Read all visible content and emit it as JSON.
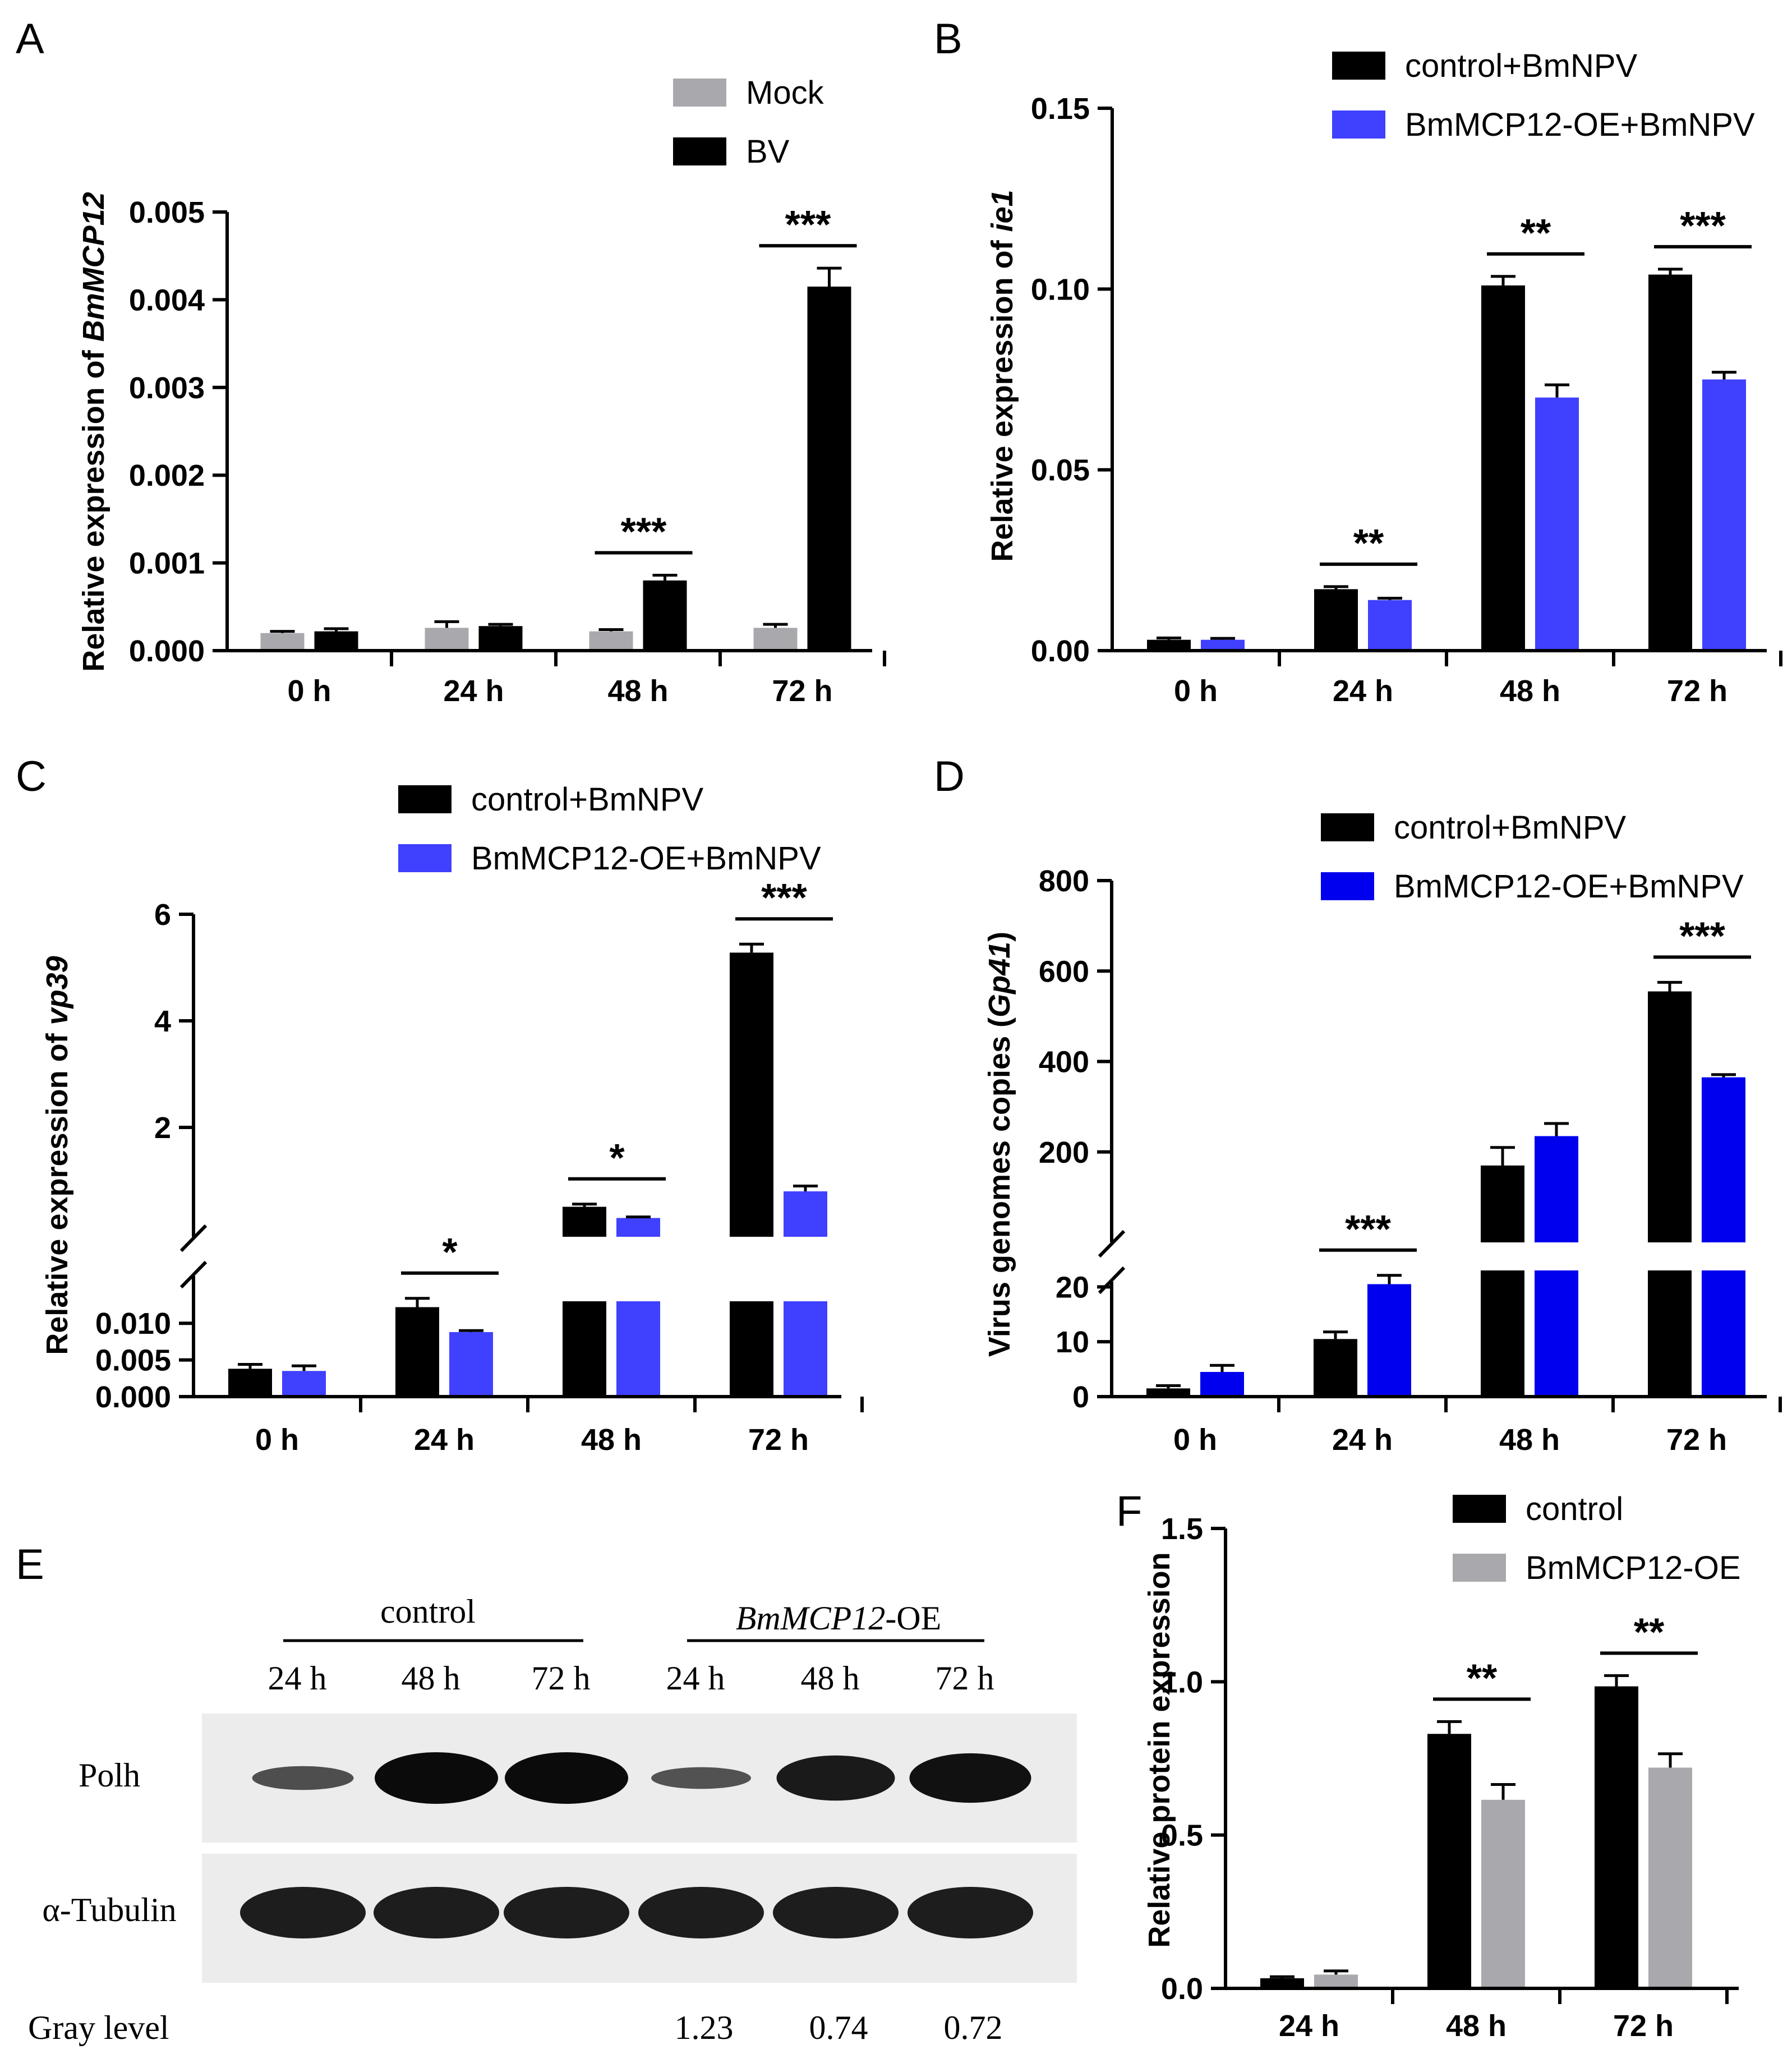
{
  "colors": {
    "black": "#000000",
    "gray": "#a9a9ad",
    "blue_light": "#4040ff",
    "blue_dark": "#0000ee"
  },
  "chart_data": [
    {
      "panel": "A",
      "type": "bar",
      "title": "",
      "xlabel": "",
      "ylabel_prefix": "Relative expression of ",
      "ylabel_italic": "BmMCP12",
      "categories": [
        "0 h",
        "24 h",
        "48 h",
        "72 h"
      ],
      "series": [
        {
          "name": "Mock",
          "color": "#a9a9ad",
          "values": [
            0.0002,
            0.00026,
            0.00022,
            0.00026
          ],
          "errors": [
            2e-05,
            7e-05,
            2e-05,
            4e-05
          ]
        },
        {
          "name": "BV",
          "color": "#000000",
          "values": [
            0.00022,
            0.00028,
            0.0008,
            0.00415
          ],
          "errors": [
            3e-05,
            2e-05,
            6e-05,
            0.00021
          ]
        }
      ],
      "ylim": [
        0,
        0.005
      ],
      "yticks": [
        "0.000",
        "0.001",
        "0.002",
        "0.003",
        "0.004",
        "0.005"
      ],
      "legend_position": "top-right",
      "significance": [
        {
          "category": "48 h",
          "label": "***"
        },
        {
          "category": "72 h",
          "label": "***"
        }
      ]
    },
    {
      "panel": "B",
      "type": "bar",
      "title": "",
      "xlabel": "",
      "ylabel_prefix": "Relative expression of ",
      "ylabel_italic": "ie1",
      "categories": [
        "0 h",
        "24 h",
        "48 h",
        "72 h"
      ],
      "series": [
        {
          "name": "control+BmNPV",
          "color": "#000000",
          "values": [
            0.003,
            0.017,
            0.101,
            0.104
          ],
          "errors": [
            0.0005,
            0.0007,
            0.0025,
            0.0015
          ]
        },
        {
          "name": "BmMCP12-OE+BmNPV",
          "color": "#4040ff",
          "values": [
            0.003,
            0.014,
            0.07,
            0.075
          ],
          "errors": [
            0.0004,
            0.0005,
            0.0035,
            0.002
          ]
        }
      ],
      "ylim": [
        0,
        0.15
      ],
      "yticks": [
        "0.00",
        "0.05",
        "0.10",
        "0.15"
      ],
      "legend_position": "top-right",
      "significance": [
        {
          "category": "24 h",
          "label": "**"
        },
        {
          "category": "48 h",
          "label": "**"
        },
        {
          "category": "72 h",
          "label": "***"
        }
      ]
    },
    {
      "panel": "C",
      "type": "bar",
      "title": "",
      "xlabel": "",
      "ylabel_prefix": "Relative expression of ",
      "ylabel_italic": "vp39",
      "axis_break": true,
      "categories": [
        "0 h",
        "24 h",
        "48 h",
        "72 h"
      ],
      "series": [
        {
          "name": "control+BmNPV",
          "color": "#000000",
          "values": [
            0.0038,
            0.0122,
            0.51,
            5.28
          ],
          "errors": [
            0.0006,
            0.0012,
            0.05,
            0.16
          ]
        },
        {
          "name": "BmMCP12-OE+BmNPV",
          "color": "#4040ff",
          "values": [
            0.0035,
            0.0088,
            0.3,
            0.8
          ],
          "errors": [
            0.0007,
            0.0002,
            0.02,
            0.1
          ]
        }
      ],
      "ylim_lower": [
        0,
        0.013
      ],
      "ylim_upper": [
        0,
        6
      ],
      "yticks_lower": [
        "0.000",
        "0.005",
        "0.010"
      ],
      "yticks_upper": [
        "2",
        "4",
        "6"
      ],
      "legend_position": "top-right",
      "significance": [
        {
          "category": "24 h",
          "label": "*"
        },
        {
          "category": "48 h",
          "label": "*"
        },
        {
          "category": "72 h",
          "label": "***"
        }
      ]
    },
    {
      "panel": "D",
      "type": "bar",
      "title": "",
      "xlabel": "",
      "ylabel_prefix": "Virus genomes copies (",
      "ylabel_italic": "Gp41",
      "ylabel_suffix": ")",
      "axis_break": true,
      "categories": [
        "0 h",
        "24 h",
        "48 h",
        "72 h"
      ],
      "series": [
        {
          "name": "control+BmNPV",
          "color": "#000000",
          "values": [
            1.5,
            10.5,
            170,
            555
          ],
          "errors": [
            0.5,
            1.3,
            40,
            20
          ]
        },
        {
          "name": "BmMCP12-OE+BmNPV",
          "color": "#0000ee",
          "values": [
            4.5,
            20.5,
            235,
            365
          ],
          "errors": [
            1.2,
            1.6,
            28,
            6
          ]
        }
      ],
      "ylim_lower": [
        0,
        23
      ],
      "ylim_upper": [
        0,
        800
      ],
      "yticks_lower": [
        "0",
        "10",
        "20"
      ],
      "yticks_upper": [
        "200",
        "400",
        "600",
        "800"
      ],
      "legend_position": "top-right",
      "significance": [
        {
          "category": "24 h",
          "label": "***"
        },
        {
          "category": "72 h",
          "label": "***"
        }
      ]
    },
    {
      "panel": "F",
      "type": "bar",
      "title": "",
      "xlabel": "",
      "ylabel": "Relative protein expression",
      "categories": [
        "24 h",
        "48 h",
        "72 h"
      ],
      "series": [
        {
          "name": "control",
          "color": "#000000",
          "values": [
            0.033,
            0.83,
            0.985
          ],
          "errors": [
            0.005,
            0.04,
            0.035
          ]
        },
        {
          "name": "BmMCP12-OE",
          "color": "#a9a9ad",
          "values": [
            0.045,
            0.615,
            0.72
          ],
          "errors": [
            0.012,
            0.05,
            0.045
          ]
        }
      ],
      "ylim": [
        0,
        1.5
      ],
      "yticks": [
        "0.0",
        "0.5",
        "1.0",
        "1.5"
      ],
      "legend_position": "top-right",
      "significance": [
        {
          "category": "48 h",
          "label": "**"
        },
        {
          "category": "72 h",
          "label": "**"
        }
      ]
    }
  ],
  "western_blot": {
    "panel": "E",
    "group_labels": [
      "control",
      "BmMCP12-OE"
    ],
    "group2_italic_part": "BmMCP12",
    "group2_suffix": "-OE",
    "lanes": [
      "24 h",
      "48 h",
      "72 h",
      "24 h",
      "48 h",
      "72 h"
    ],
    "rows": [
      "Polh",
      "α-Tubulin"
    ],
    "polh_intensity": [
      0.35,
      1.0,
      1.0,
      0.3,
      0.85,
      0.95
    ],
    "gray_level_label": "Gray  level",
    "gray_levels": [
      "1.23",
      "0.74",
      "0.72"
    ]
  },
  "panel_letters": [
    "A",
    "B",
    "C",
    "D",
    "E",
    "F"
  ]
}
